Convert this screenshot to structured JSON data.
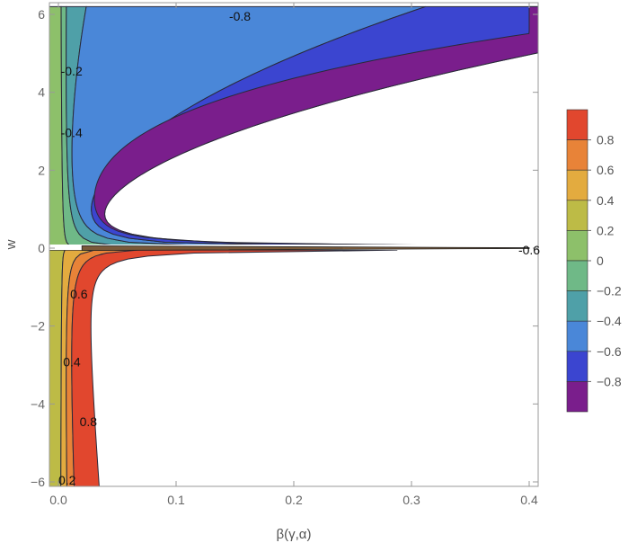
{
  "chart_data": {
    "type": "contour",
    "xlabel": "β(γ,α)",
    "ylabel": "w",
    "xlim": [
      0,
      0.4
    ],
    "ylim": [
      -6,
      6
    ],
    "x_ticks": [
      {
        "value": 0.0,
        "label": "0.0"
      },
      {
        "value": 0.1,
        "label": "0.1"
      },
      {
        "value": 0.2,
        "label": "0.2"
      },
      {
        "value": 0.3,
        "label": "0.3"
      },
      {
        "value": 0.4,
        "label": "0.4"
      }
    ],
    "y_ticks": [
      {
        "value": -6,
        "label": "−6"
      },
      {
        "value": -4,
        "label": "−4"
      },
      {
        "value": -2,
        "label": "−2"
      },
      {
        "value": 0,
        "label": "0"
      },
      {
        "value": 2,
        "label": "2"
      },
      {
        "value": 4,
        "label": "4"
      },
      {
        "value": 6,
        "label": "6"
      }
    ],
    "levels": [
      -1.0,
      -0.8,
      -0.6,
      -0.4,
      -0.2,
      0.0,
      0.2,
      0.4,
      0.6,
      0.8,
      1.0
    ],
    "level_colors": [
      "#7a1e8c",
      "#3b45d0",
      "#4a87d8",
      "#4fa0a8",
      "#6fb987",
      "#8dc06a",
      "#bdbb46",
      "#e3ab3f",
      "#e88338",
      "#e1472e"
    ],
    "contour_labels": [
      {
        "text": "-0.8",
        "x": 0.145,
        "y": 5.95
      },
      {
        "text": "-0.2",
        "x": 0.002,
        "y": 4.55
      },
      {
        "text": "-0.4",
        "x": 0.002,
        "y": 2.97
      },
      {
        "text": "-0.6",
        "x": 0.4,
        "y": -0.05
      },
      {
        "text": "0.6",
        "x": 0.01,
        "y": -1.18
      },
      {
        "text": "0.4",
        "x": 0.004,
        "y": -2.92
      },
      {
        "text": "0.8",
        "x": 0.018,
        "y": -4.45
      },
      {
        "text": "0.2",
        "x": 0.0,
        "y": -5.95
      }
    ],
    "legend": {
      "placement": "right",
      "ticks": [
        {
          "value": 0.8,
          "label": "0.8"
        },
        {
          "value": 0.6,
          "label": "0.6"
        },
        {
          "value": 0.4,
          "label": "0.4"
        },
        {
          "value": 0.2,
          "label": "0.2"
        },
        {
          "value": 0.0,
          "label": "0"
        },
        {
          "value": -0.2,
          "label": "−0.2"
        },
        {
          "value": -0.4,
          "label": "−0.4"
        },
        {
          "value": -0.6,
          "label": "−0.6"
        },
        {
          "value": -0.8,
          "label": "−0.8"
        }
      ]
    },
    "grid": false
  }
}
